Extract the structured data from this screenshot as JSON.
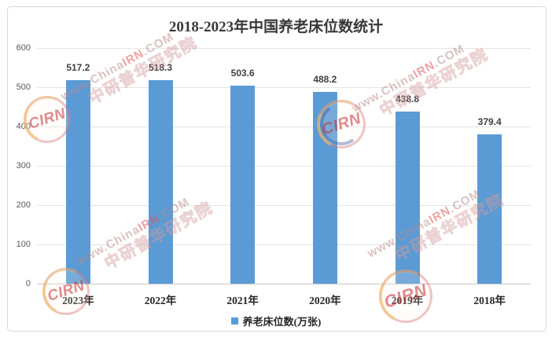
{
  "title": "2018-2023年中国养老床位数统计",
  "chart_data": {
    "type": "bar",
    "title": "2018-2023年中国养老床位数统计",
    "categories": [
      "2023年",
      "2022年",
      "2021年",
      "2020年",
      "2019年",
      "2018年"
    ],
    "values": [
      517.2,
      518.3,
      503.6,
      488.2,
      438.8,
      379.4
    ],
    "series_name": "养老床位数(万张)",
    "xlabel": "",
    "ylabel": "",
    "ylim": [
      0,
      600
    ],
    "yticks": [
      0,
      100,
      200,
      300,
      400,
      500,
      600
    ],
    "grid": true,
    "legend_position": "bottom",
    "bar_color": "#5B9BD5"
  },
  "legend": {
    "label": "养老床位数(万张)",
    "swatch_color": "#5B9BD5"
  },
  "watermark": {
    "url_a": "www.China",
    "url_b": "IRN",
    "url_c": ".COM",
    "brand_cn": "中研普华研究院",
    "logo_text": "CIRN"
  }
}
